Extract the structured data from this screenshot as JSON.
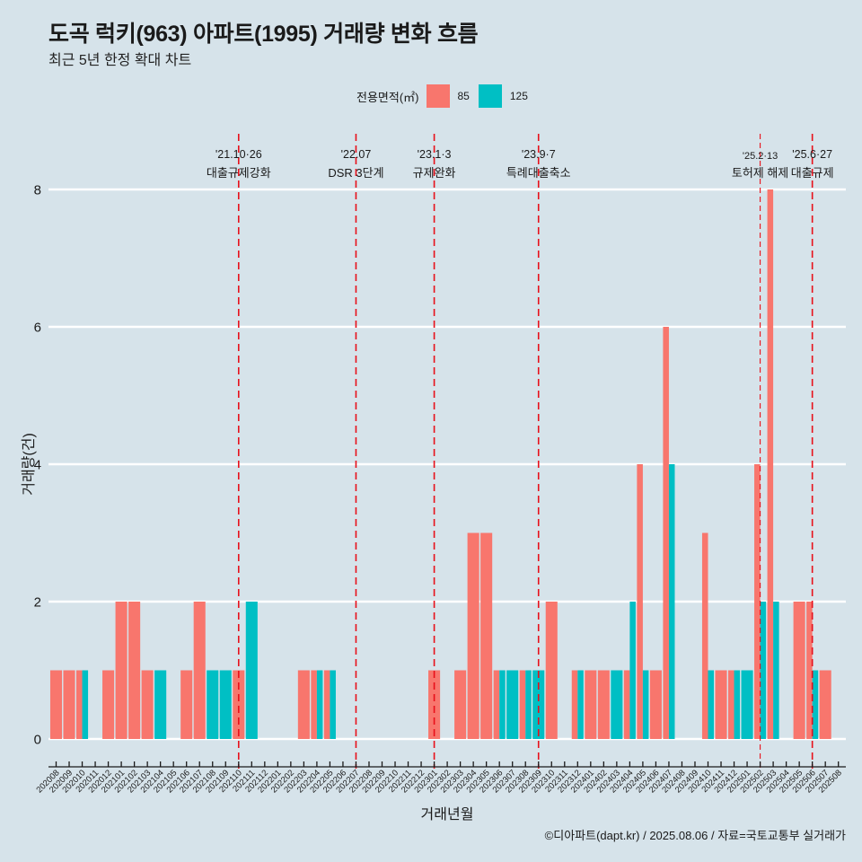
{
  "header": {
    "title": "도곡 럭키(963) 아파트(1995) 거래량 변화 흐름",
    "subtitle": "최근 5년 한정 확대 차트"
  },
  "legend": {
    "title": "전용면적(㎡)",
    "items": [
      {
        "label": "85",
        "color": "#F8766D"
      },
      {
        "label": "125",
        "color": "#00BFC4"
      }
    ]
  },
  "caption": "©디아파트(dapt.kr) / 2025.08.06 / 자료=국토교통부 실거래가",
  "chart_data": {
    "type": "bar",
    "title": "도곡 럭키(963) 아파트(1995) 거래량 변화 흐름",
    "subtitle": "최근 5년 한정 확대 차트",
    "xlabel": "거래년월",
    "ylabel": "거래량(건)",
    "ylim": [
      -0.3,
      8.8
    ],
    "yticks": [
      0,
      2,
      4,
      6,
      8
    ],
    "grid": "major-y",
    "legend_position": "top",
    "bar_position": "dodge",
    "categories": [
      "202008",
      "202009",
      "202010",
      "202011",
      "202012",
      "202101",
      "202102",
      "202103",
      "202104",
      "202105",
      "202106",
      "202107",
      "202108",
      "202109",
      "202110",
      "202111",
      "202112",
      "202201",
      "202202",
      "202203",
      "202204",
      "202205",
      "202206",
      "202207",
      "202208",
      "202209",
      "202210",
      "202211",
      "202212",
      "202301",
      "202302",
      "202303",
      "202304",
      "202305",
      "202306",
      "202307",
      "202308",
      "202309",
      "202310",
      "202311",
      "202312",
      "202401",
      "202402",
      "202403",
      "202404",
      "202405",
      "202406",
      "202407",
      "202408",
      "202409",
      "202410",
      "202411",
      "202412",
      "202501",
      "202502",
      "202503",
      "202504",
      "202505",
      "202506",
      "202507",
      "202508"
    ],
    "series": [
      {
        "name": "85",
        "color": "#F8766D",
        "values": [
          1,
          1,
          1,
          0,
          1,
          2,
          2,
          1,
          0,
          0,
          1,
          2,
          0,
          0,
          1,
          0,
          0,
          0,
          0,
          1,
          1,
          1,
          0,
          0,
          0,
          0,
          0,
          0,
          0,
          1,
          0,
          1,
          3,
          3,
          1,
          0,
          1,
          0,
          2,
          0,
          1,
          1,
          1,
          0,
          1,
          4,
          1,
          6,
          0,
          0,
          3,
          1,
          1,
          0,
          4,
          8,
          0,
          2,
          2,
          1,
          0
        ]
      },
      {
        "name": "125",
        "color": "#00BFC4",
        "values": [
          0,
          0,
          1,
          0,
          0,
          0,
          0,
          0,
          1,
          0,
          0,
          0,
          1,
          1,
          0,
          2,
          0,
          0,
          0,
          0,
          1,
          1,
          0,
          0,
          0,
          0,
          0,
          0,
          0,
          0,
          0,
          0,
          0,
          0,
          1,
          1,
          1,
          1,
          0,
          0,
          1,
          0,
          0,
          1,
          2,
          1,
          0,
          4,
          0,
          0,
          1,
          0,
          1,
          1,
          2,
          2,
          0,
          0,
          1,
          0,
          0
        ]
      }
    ],
    "annotations": [
      {
        "month": "202110",
        "date": "'21.10·26",
        "label": "대출규제강화",
        "secondary": false
      },
      {
        "month": "202207",
        "date": "'22.07",
        "label": "DSR 3단계",
        "secondary": false
      },
      {
        "month": "202301",
        "date": "'23.1·3",
        "label": "규제완화",
        "secondary": false
      },
      {
        "month": "202309",
        "date": "'23.9·7",
        "label": "특례대출축소",
        "secondary": false
      },
      {
        "month": "202502",
        "date": "'25.2·13",
        "label": "토허제 해제",
        "secondary": true
      },
      {
        "month": "202506",
        "date": "'25.6·27",
        "label": "대출규제",
        "secondary": false
      }
    ],
    "annotation_color": "#E8101A"
  }
}
